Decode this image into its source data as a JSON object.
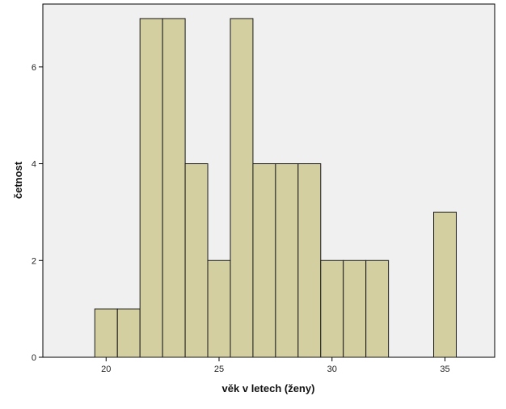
{
  "chart_data": {
    "type": "bar",
    "title": "",
    "xlabel": "věk v letech (ženy)",
    "ylabel": "četnost",
    "x": [
      20,
      21,
      22,
      23,
      24,
      25,
      26,
      27,
      28,
      29,
      30,
      31,
      32,
      35
    ],
    "values": [
      1,
      1,
      7,
      7,
      4,
      2,
      7,
      4,
      4,
      4,
      2,
      2,
      2,
      3
    ],
    "bin_width": 1,
    "xlim": [
      17.2,
      37.2
    ],
    "ylim": [
      0,
      7.3
    ],
    "x_ticks": [
      20,
      25,
      30,
      35
    ],
    "y_ticks": [
      0,
      2,
      4,
      6
    ],
    "grid": false,
    "legend": "none",
    "colors": {
      "bar_fill": "#d3cfa0",
      "bar_stroke": "#1a1a1a",
      "plot_background": "#f0f0f0",
      "axis": "#000000"
    }
  }
}
